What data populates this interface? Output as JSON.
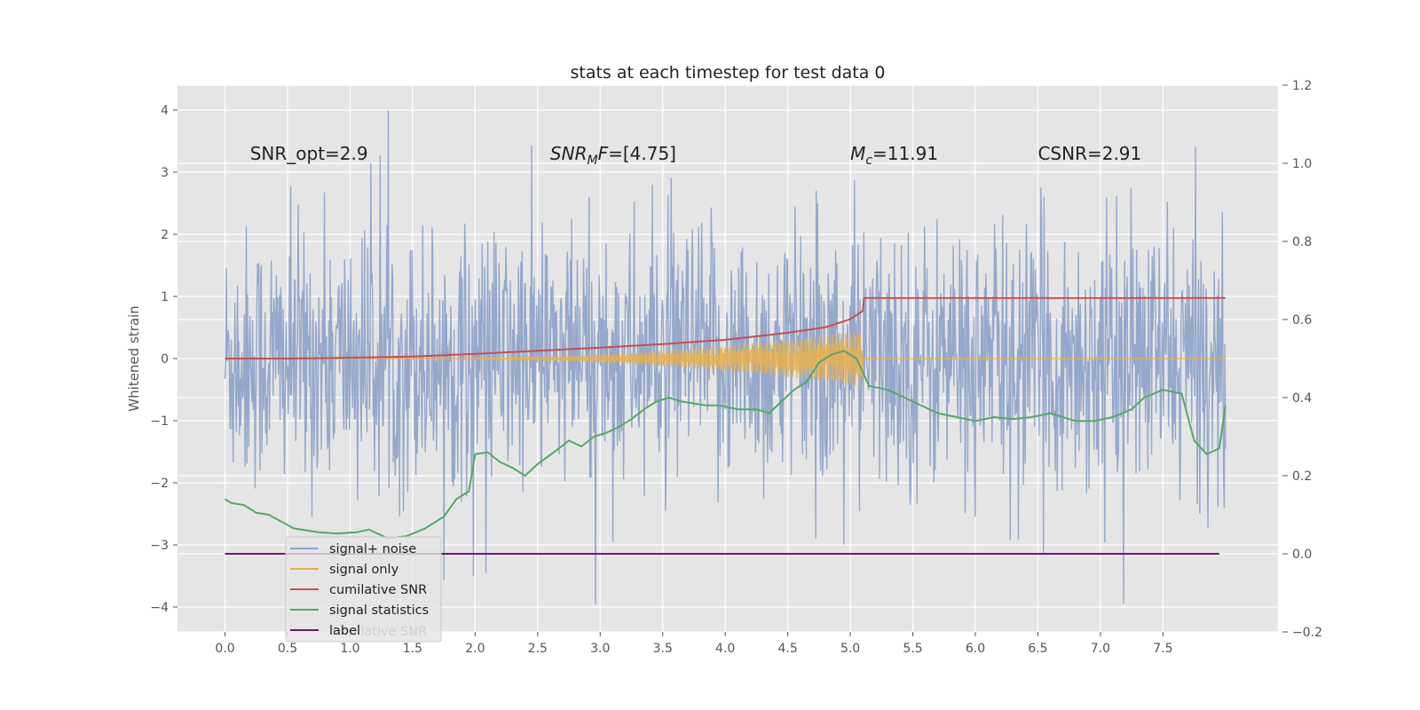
{
  "chart_data": {
    "type": "line",
    "title": "stats at each timestep for test data 0",
    "ylabel": "Whitened strain",
    "xlim": [
      -0.38,
      8.42
    ],
    "ylim": [
      -4.4,
      4.4
    ],
    "y2lim": [
      -0.2,
      1.2
    ],
    "x_ticks": [
      0.0,
      0.5,
      1.0,
      1.5,
      2.0,
      2.5,
      3.0,
      3.5,
      4.0,
      4.5,
      5.0,
      5.5,
      6.0,
      6.5,
      7.0,
      7.5
    ],
    "x_tick_labels": [
      "0.0",
      "0.5",
      "1.0",
      "1.5",
      "2.0",
      "2.5",
      "3.0",
      "3.5",
      "4.0",
      "4.5",
      "5.0",
      "5.5",
      "6.0",
      "6.5",
      "7.0",
      "7.5"
    ],
    "y_ticks": [
      -4,
      -3,
      -2,
      -1,
      0,
      1,
      2,
      3,
      4
    ],
    "y_tick_labels": [
      "−4",
      "−3",
      "−2",
      "−1",
      "0",
      "1",
      "2",
      "3",
      "4"
    ],
    "y2_ticks": [
      -0.2,
      0.0,
      0.2,
      0.4,
      0.6,
      0.8,
      1.0,
      1.2
    ],
    "y2_tick_labels": [
      "−0.2",
      "0.0",
      "0.2",
      "0.4",
      "0.6",
      "0.8",
      "1.0",
      "1.2"
    ],
    "grid": true,
    "annotations": [
      {
        "text": "SNR_opt=2.9",
        "x": 0.2,
        "y": 3.2
      },
      {
        "parts": [
          {
            "text": "SNR",
            "italic": true
          },
          {
            "text": "M",
            "italic": true,
            "sub": true
          },
          {
            "text": "F",
            "italic": true
          },
          {
            "text": "=[4.75]",
            "italic": false
          }
        ],
        "x": 2.6,
        "y": 3.2
      },
      {
        "parts": [
          {
            "text": "M",
            "italic": true
          },
          {
            "text": "c",
            "italic": true,
            "sub": true
          },
          {
            "text": "=11.91",
            "italic": false
          }
        ],
        "x": 5.0,
        "y": 3.2
      },
      {
        "text": "CSNR=2.91",
        "x": 6.5,
        "y": 3.2
      }
    ],
    "series": [
      {
        "name": "signal+ noise",
        "axis": "left",
        "color": "#8fa4c9",
        "description": "whitened noisy strain, roughly gaussian noise between -3 and 3 with spikes to about 4; spans x 0.0 to 8.0",
        "x_range": [
          0.0,
          8.0
        ],
        "y_range": [
          -4.0,
          4.05
        ]
      },
      {
        "name": "signal only",
        "axis": "left",
        "color": "#e8b04b",
        "chirp": {
          "t_start": 1.5,
          "t_merge": 5.1,
          "peak_amplitude": 0.45,
          "end": 8.0
        }
      },
      {
        "name": "cumilative SNR",
        "axis": "right",
        "color": "#cc4c4c",
        "x": [
          0.0,
          0.5,
          1.0,
          1.5,
          2.0,
          2.5,
          3.0,
          3.5,
          4.0,
          4.5,
          4.8,
          5.0,
          5.1,
          5.11,
          6.0,
          7.0,
          8.0
        ],
        "y": [
          0.5,
          0.5,
          0.502,
          0.505,
          0.512,
          0.52,
          0.528,
          0.537,
          0.548,
          0.566,
          0.58,
          0.601,
          0.622,
          0.655,
          0.655,
          0.655,
          0.655
        ]
      },
      {
        "name": "signal statistics",
        "axis": "right",
        "color": "#55a868",
        "x": [
          0.0,
          0.05,
          0.15,
          0.25,
          0.35,
          0.55,
          0.75,
          0.9,
          1.05,
          1.15,
          1.3,
          1.45,
          1.6,
          1.75,
          1.85,
          1.95,
          2.0,
          2.1,
          2.2,
          2.3,
          2.4,
          2.5,
          2.65,
          2.75,
          2.85,
          2.95,
          3.05,
          3.15,
          3.25,
          3.35,
          3.45,
          3.55,
          3.65,
          3.75,
          3.85,
          3.95,
          4.1,
          4.25,
          4.35,
          4.45,
          4.55,
          4.65,
          4.75,
          4.85,
          4.95,
          5.05,
          5.15,
          5.3,
          5.5,
          5.7,
          5.85,
          6.0,
          6.15,
          6.3,
          6.45,
          6.6,
          6.8,
          6.95,
          7.1,
          7.25,
          7.35,
          7.5,
          7.65,
          7.75,
          7.85,
          7.95,
          8.0
        ],
        "y": [
          0.14,
          0.13,
          0.125,
          0.105,
          0.1,
          0.065,
          0.055,
          0.052,
          0.055,
          0.062,
          0.04,
          0.045,
          0.065,
          0.095,
          0.14,
          0.16,
          0.255,
          0.26,
          0.235,
          0.22,
          0.2,
          0.23,
          0.265,
          0.29,
          0.275,
          0.3,
          0.31,
          0.325,
          0.345,
          0.37,
          0.39,
          0.4,
          0.39,
          0.385,
          0.38,
          0.38,
          0.37,
          0.37,
          0.36,
          0.39,
          0.42,
          0.44,
          0.49,
          0.51,
          0.52,
          0.5,
          0.43,
          0.42,
          0.39,
          0.36,
          0.35,
          0.34,
          0.35,
          0.345,
          0.35,
          0.36,
          0.34,
          0.34,
          0.35,
          0.37,
          0.4,
          0.42,
          0.41,
          0.29,
          0.255,
          0.27,
          0.38
        ]
      },
      {
        "name": "label",
        "axis": "right",
        "color": "#6a1b6d",
        "x": [
          0.0,
          7.95
        ],
        "y": [
          0.0,
          0.0
        ]
      }
    ],
    "legend": {
      "placement": "lower-left",
      "entries": [
        "signal+ noise",
        "signal only",
        "cumilative SNR",
        "signal statistics",
        "label"
      ],
      "ghost_entry": "cumilative SNR"
    }
  }
}
